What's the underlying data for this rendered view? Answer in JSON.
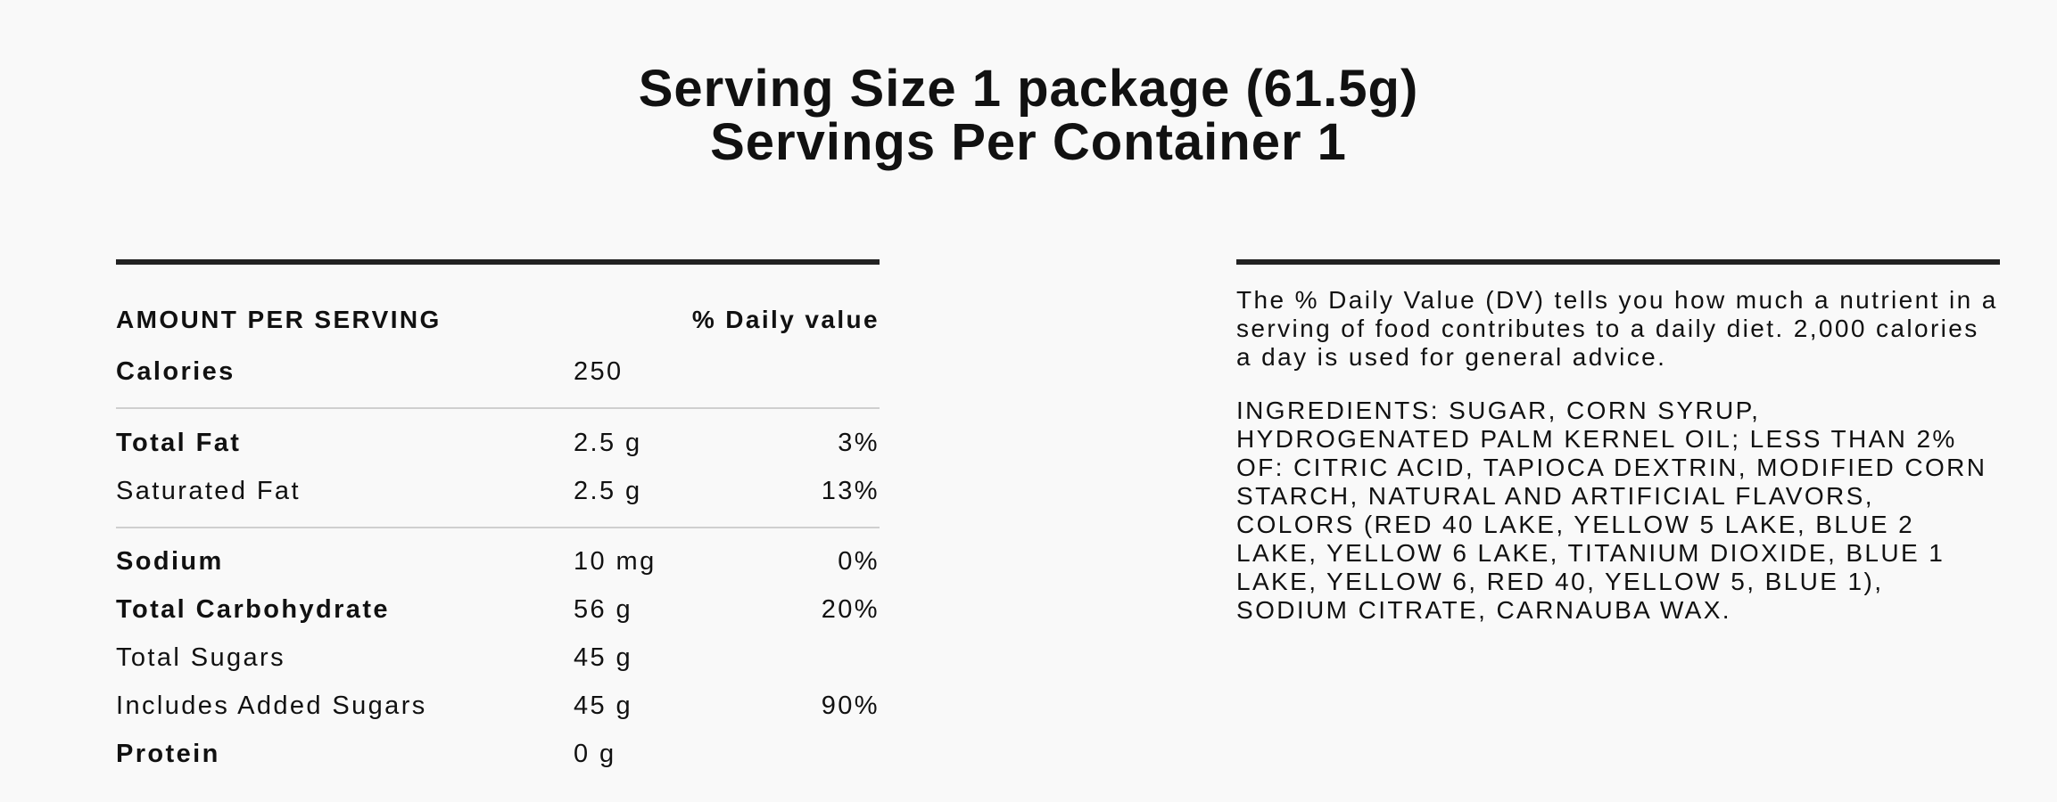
{
  "header": {
    "serving_size": "Serving Size 1 package (61.5g)",
    "servings_per_container": "Servings Per Container 1"
  },
  "facts": {
    "amount_heading": "AMOUNT PER SERVING",
    "daily_value_heading": "% Daily value",
    "rows": [
      {
        "name": "Calories",
        "amount": "250",
        "dv": ""
      },
      {
        "name": "Total Fat",
        "amount": "2.5 g",
        "dv": "3%"
      },
      {
        "name": "Saturated Fat",
        "amount": "2.5 g",
        "dv": "13%"
      },
      {
        "name": "Sodium",
        "amount": "10 mg",
        "dv": "0%"
      },
      {
        "name": "Total Carbohydrate",
        "amount": "56 g",
        "dv": "20%"
      },
      {
        "name": "Total Sugars",
        "amount": "45 g",
        "dv": ""
      },
      {
        "name": "Includes Added Sugars",
        "amount": "45 g",
        "dv": "90%"
      },
      {
        "name": "Protein",
        "amount": "0 g",
        "dv": ""
      }
    ]
  },
  "info": {
    "dv_note": "The % Daily Value (DV) tells you how much a nutrient in a serving of food contributes to a daily diet. 2,000 calories a day is used for general advice.",
    "ingredients": "INGREDIENTS: SUGAR, CORN SYRUP, HYDROGENATED PALM KERNEL OIL; LESS THAN 2% OF: CITRIC ACID, TAPIOCA DEXTRIN, MODIFIED CORN STARCH, NATURAL AND ARTIFICIAL FLAVORS, COLORS (RED 40 LAKE, YELLOW 5 LAKE, BLUE 2 LAKE, YELLOW 6 LAKE, TITANIUM DIOXIDE, BLUE 1 LAKE, YELLOW 6, RED 40, YELLOW 5, BLUE 1), SODIUM CITRATE, CARNAUBA WAX."
  }
}
